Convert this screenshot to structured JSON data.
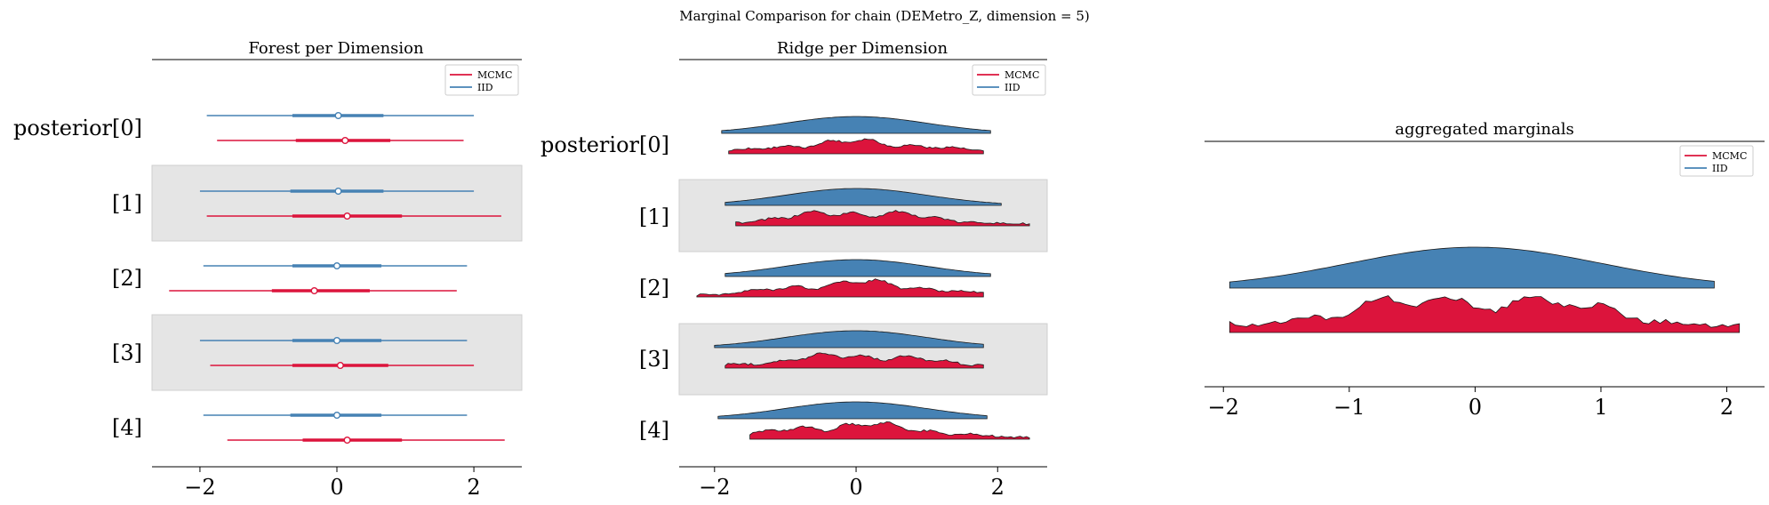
{
  "colors": {
    "mcmc": "#dc143c",
    "iid": "#4682b4",
    "band": "#e5e5e5",
    "band_stroke": "#cfcfcf",
    "axis": "#000000"
  },
  "suptitle": "Marginal Comparison for chain (DEMetro_Z, dimension = 5)",
  "chart_data": [
    {
      "type": "forest",
      "title": "Forest per Dimension",
      "xlim": [
        -2.7,
        2.7
      ],
      "xticks": [
        -2,
        0,
        2
      ],
      "xtick_labels": [
        "−2",
        "0",
        "2"
      ],
      "row_labels": [
        "posterior[0]",
        "[1]",
        "[2]",
        "[3]",
        "[4]"
      ],
      "bands": "alternating grey bands behind rows [1] and [3]",
      "legend": {
        "position": "top-right",
        "entries": [
          "MCMC",
          "IID"
        ]
      },
      "series": [
        {
          "name": "IID",
          "color": "#4682b4",
          "rows": [
            {
              "lo": -1.9,
              "q1": -0.65,
              "med": 0.02,
              "q3": 0.68,
              "hi": 2.0
            },
            {
              "lo": -2.0,
              "q1": -0.68,
              "med": 0.02,
              "q3": 0.68,
              "hi": 2.0
            },
            {
              "lo": -1.95,
              "q1": -0.65,
              "med": 0.0,
              "q3": 0.65,
              "hi": 1.9
            },
            {
              "lo": -2.0,
              "q1": -0.65,
              "med": 0.0,
              "q3": 0.65,
              "hi": 1.9
            },
            {
              "lo": -1.95,
              "q1": -0.68,
              "med": 0.0,
              "q3": 0.65,
              "hi": 1.9
            }
          ]
        },
        {
          "name": "MCMC",
          "color": "#dc143c",
          "rows": [
            {
              "lo": -1.75,
              "q1": -0.6,
              "med": 0.12,
              "q3": 0.78,
              "hi": 1.85
            },
            {
              "lo": -1.9,
              "q1": -0.65,
              "med": 0.15,
              "q3": 0.95,
              "hi": 2.4
            },
            {
              "lo": -2.45,
              "q1": -0.95,
              "med": -0.33,
              "q3": 0.48,
              "hi": 1.75
            },
            {
              "lo": -1.85,
              "q1": -0.65,
              "med": 0.05,
              "q3": 0.75,
              "hi": 2.0
            },
            {
              "lo": -1.6,
              "q1": -0.5,
              "med": 0.15,
              "q3": 0.95,
              "hi": 2.45
            }
          ]
        }
      ]
    },
    {
      "type": "ridge",
      "title": "Ridge per Dimension",
      "xlim": [
        -2.5,
        2.7
      ],
      "xticks": [
        -2,
        0,
        2
      ],
      "xtick_labels": [
        "−2",
        "0",
        "2"
      ],
      "row_labels": [
        "posterior[0]",
        "[1]",
        "[2]",
        "[3]",
        "[4]"
      ],
      "bands": "alternating grey bands behind rows [1] and [3]",
      "legend": {
        "position": "top-right",
        "entries": [
          "MCMC",
          "IID"
        ]
      },
      "series": [
        {
          "name": "IID",
          "color": "#4682b4",
          "rows": [
            {
              "range": [
                -1.9,
                1.9
              ],
              "amp": 1.0
            },
            {
              "range": [
                -1.85,
                2.05
              ],
              "amp": 1.0
            },
            {
              "range": [
                -1.85,
                1.9
              ],
              "amp": 1.0
            },
            {
              "range": [
                -2.0,
                1.8
              ],
              "amp": 1.0
            },
            {
              "range": [
                -1.95,
                1.85
              ],
              "amp": 1.0
            }
          ]
        },
        {
          "name": "MCMC",
          "color": "#dc143c",
          "rows": [
            {
              "range": [
                -1.8,
                1.8
              ],
              "amp": 0.85
            },
            {
              "range": [
                -1.7,
                2.45
              ],
              "amp": 0.95
            },
            {
              "range": [
                -2.25,
                1.8
              ],
              "amp": 1.0
            },
            {
              "range": [
                -1.85,
                1.8
              ],
              "amp": 0.9
            },
            {
              "range": [
                -1.5,
                2.45
              ],
              "amp": 1.0
            }
          ]
        }
      ]
    },
    {
      "type": "ridge",
      "title": "aggregated marginals",
      "xlim": [
        -2.15,
        2.3
      ],
      "xticks": [
        -2,
        -1,
        0,
        1,
        2
      ],
      "xtick_labels": [
        "−2",
        "−1",
        "0",
        "1",
        "2"
      ],
      "legend": {
        "position": "top-right",
        "entries": [
          "MCMC",
          "IID"
        ]
      },
      "series": [
        {
          "name": "IID",
          "color": "#4682b4",
          "range": [
            -1.95,
            1.9
          ],
          "amp": 1.0
        },
        {
          "name": "MCMC",
          "color": "#dc143c",
          "range": [
            -1.95,
            2.1
          ],
          "amp": 1.0
        }
      ]
    }
  ]
}
